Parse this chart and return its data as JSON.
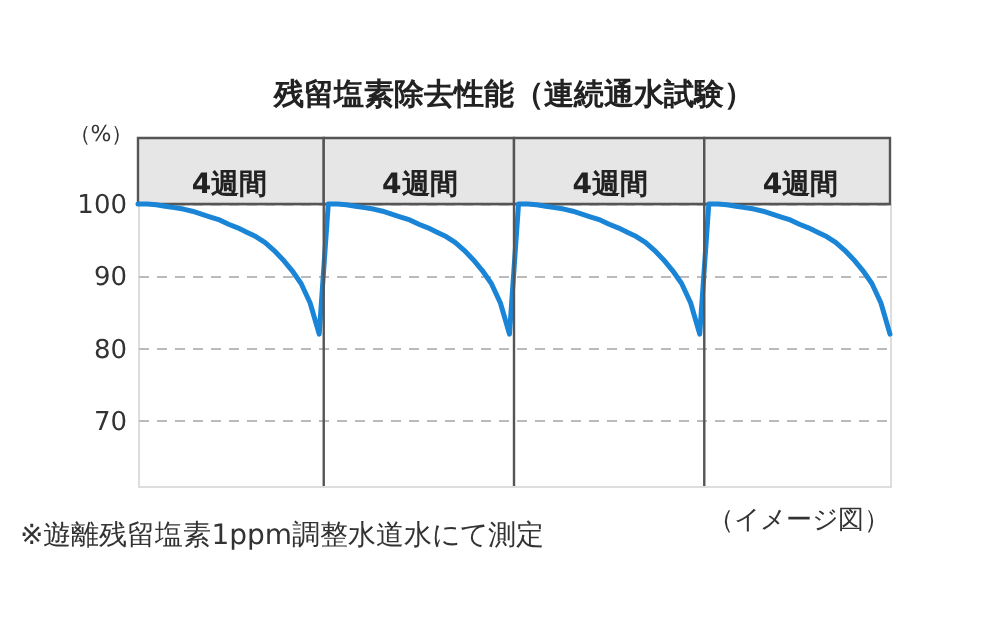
{
  "chart_data": {
    "type": "line",
    "title": "残留塩素除去性能（連続通水試験）",
    "ylabel": "（%）",
    "categories": [
      null,
      null,
      null,
      null,
      null,
      null,
      null,
      null,
      null,
      null,
      "4週間",
      null,
      null,
      null,
      null,
      null,
      null,
      null,
      null,
      null,
      null,
      null,
      null,
      null,
      null,
      null,
      null,
      null,
      null,
      null,
      null,
      "4週間",
      null,
      null,
      null,
      null,
      null,
      null,
      null,
      null,
      null,
      null,
      null,
      null,
      null,
      null,
      null,
      null,
      null,
      null,
      null,
      null,
      "4週間",
      null,
      null,
      null,
      null,
      null,
      null,
      null,
      null,
      null,
      null,
      null,
      null,
      null,
      null,
      null,
      null,
      null,
      null,
      null,
      null,
      "4週間",
      null,
      null,
      null,
      null,
      null,
      null,
      null,
      null,
      null,
      null
    ],
    "series": [
      {
        "color": "#1a85d6",
        "values": [
          100,
          100,
          99.9,
          99.7,
          99.5,
          99.3,
          99.0,
          98.6,
          98.2,
          97.8,
          97.2,
          96.7,
          96.1,
          95.5,
          94.7,
          93.6,
          92.3,
          90.8,
          89.0,
          86.3,
          82,
          100,
          100,
          99.9,
          99.7,
          99.5,
          99.3,
          99.0,
          98.6,
          98.2,
          97.8,
          97.2,
          96.7,
          96.1,
          95.5,
          94.7,
          93.6,
          92.3,
          90.8,
          89.0,
          86.3,
          82,
          100,
          100,
          99.9,
          99.7,
          99.5,
          99.3,
          99.0,
          98.6,
          98.2,
          97.8,
          97.2,
          96.7,
          96.1,
          95.5,
          94.7,
          93.6,
          92.3,
          90.8,
          89.0,
          86.3,
          82,
          100,
          100,
          99.9,
          99.7,
          99.5,
          99.3,
          99.0,
          98.6,
          98.2,
          97.8,
          97.2,
          96.7,
          96.1,
          95.5,
          94.7,
          93.6,
          92.3,
          90.8,
          89.0,
          86.3,
          82
        ]
      }
    ],
    "ylim": [
      61,
      100
    ],
    "yticks": [
      70,
      80,
      90,
      100
    ],
    "annotations": [
      "※遊離残留塩素1ppm調整水道水にて測定",
      "（イメージ図）"
    ],
    "grid": "y",
    "marker": "none",
    "line_style": "solid"
  }
}
